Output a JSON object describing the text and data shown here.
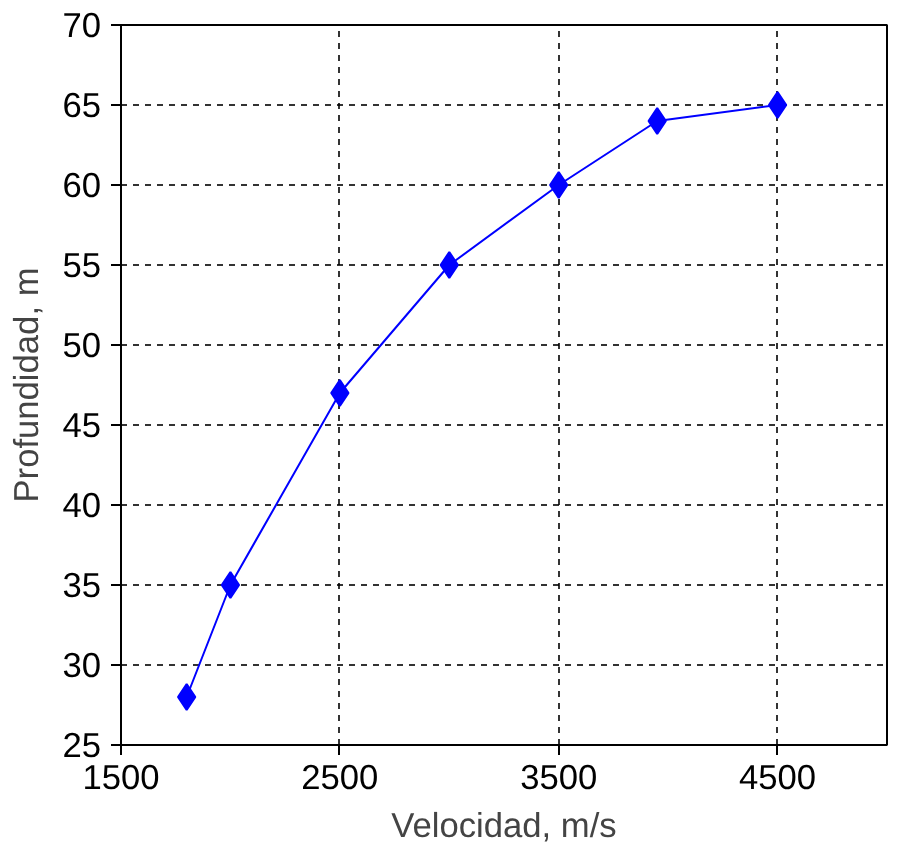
{
  "chart_data": {
    "type": "line",
    "xlabel": "Velocidad, m/s",
    "ylabel": "Profundidad, m",
    "x": [
      1800,
      2000,
      2500,
      3000,
      3500,
      3950,
      4500
    ],
    "series": [
      {
        "color": "#0000ff",
        "values": [
          28,
          35,
          47,
          55,
          60,
          64,
          65
        ]
      }
    ],
    "xlim": [
      1500,
      5000
    ],
    "xticks": [
      1500,
      2500,
      3500,
      4500
    ],
    "ylim": [
      25,
      70
    ],
    "yticks": [
      25,
      30,
      35,
      40,
      45,
      50,
      55,
      60,
      65,
      70
    ],
    "grid": true,
    "marker": "diamond",
    "line_style": "solid"
  }
}
